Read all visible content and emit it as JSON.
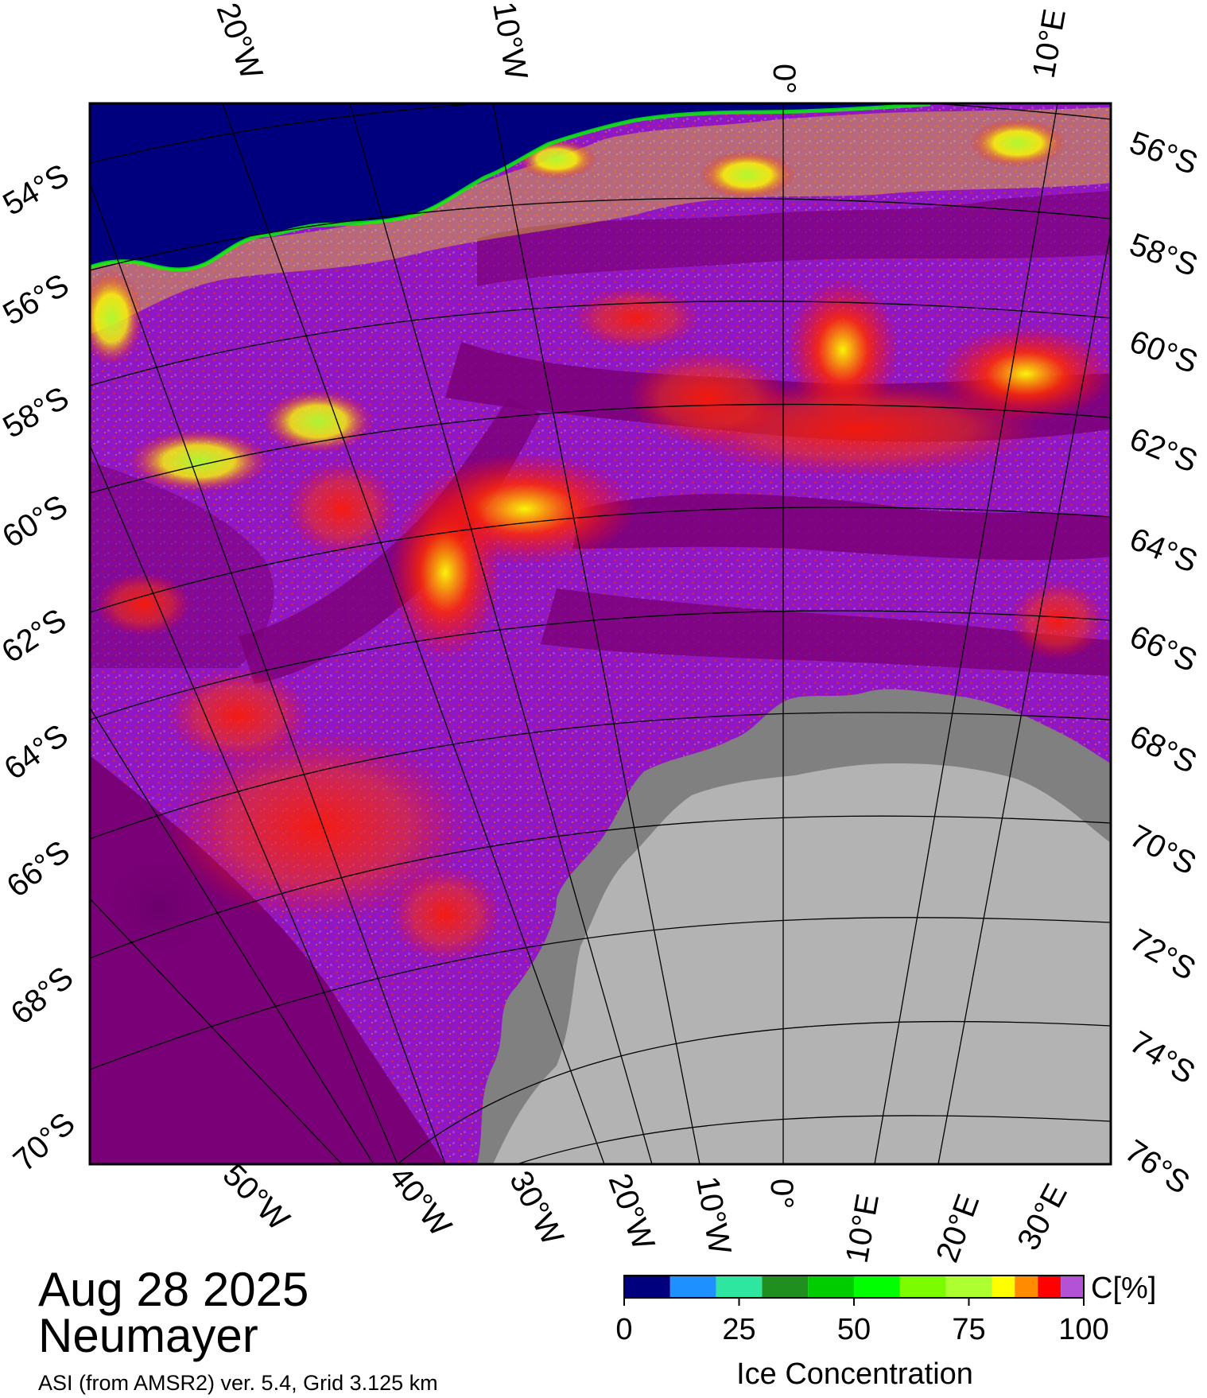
{
  "date": "Aug 28 2025",
  "station": "Neumayer",
  "product": "ASI (from AMSR2) ver. 5.4,  Grid 3.125 km",
  "top_lon_labels": [
    "20°W",
    "10°W",
    "0°",
    "10°E"
  ],
  "bottom_lon_labels": [
    "50°W",
    "40°W",
    "30°W",
    "20°W",
    "10°W",
    "0°",
    "10°E",
    "20°E",
    "30°E"
  ],
  "left_lat_labels": [
    "54°S",
    "56°S",
    "58°S",
    "60°S",
    "62°S",
    "64°S",
    "66°S",
    "68°S",
    "70°S"
  ],
  "right_lat_labels": [
    "56°S",
    "58°S",
    "60°S",
    "62°S",
    "64°S",
    "66°S",
    "68°S",
    "70°S",
    "72°S",
    "74°S",
    "76°S"
  ],
  "colorbar": {
    "unit_label": "C[%]",
    "title": "Ice Concentration",
    "tick_labels": [
      "0",
      "25",
      "50",
      "75",
      "100"
    ],
    "range": [
      0,
      100
    ],
    "colors": [
      "#00007f",
      "#1e90ff",
      "#2fe6a0",
      "#1f8f1f",
      "#00cc00",
      "#00ff00",
      "#7cfc00",
      "#adff2f",
      "#ffff00",
      "#ff8c00",
      "#ff0000",
      "#b452d6",
      "#9400d3",
      "#7a0077"
    ],
    "boundaries": [
      0,
      10,
      20,
      30,
      40,
      50,
      60,
      70,
      80,
      85,
      90,
      95,
      100
    ]
  },
  "legend_colors": {
    "open_water": "#00007f",
    "high_concentration": "#7a0077",
    "land": "#b3b3b3",
    "ice_shelf": "#808080"
  }
}
